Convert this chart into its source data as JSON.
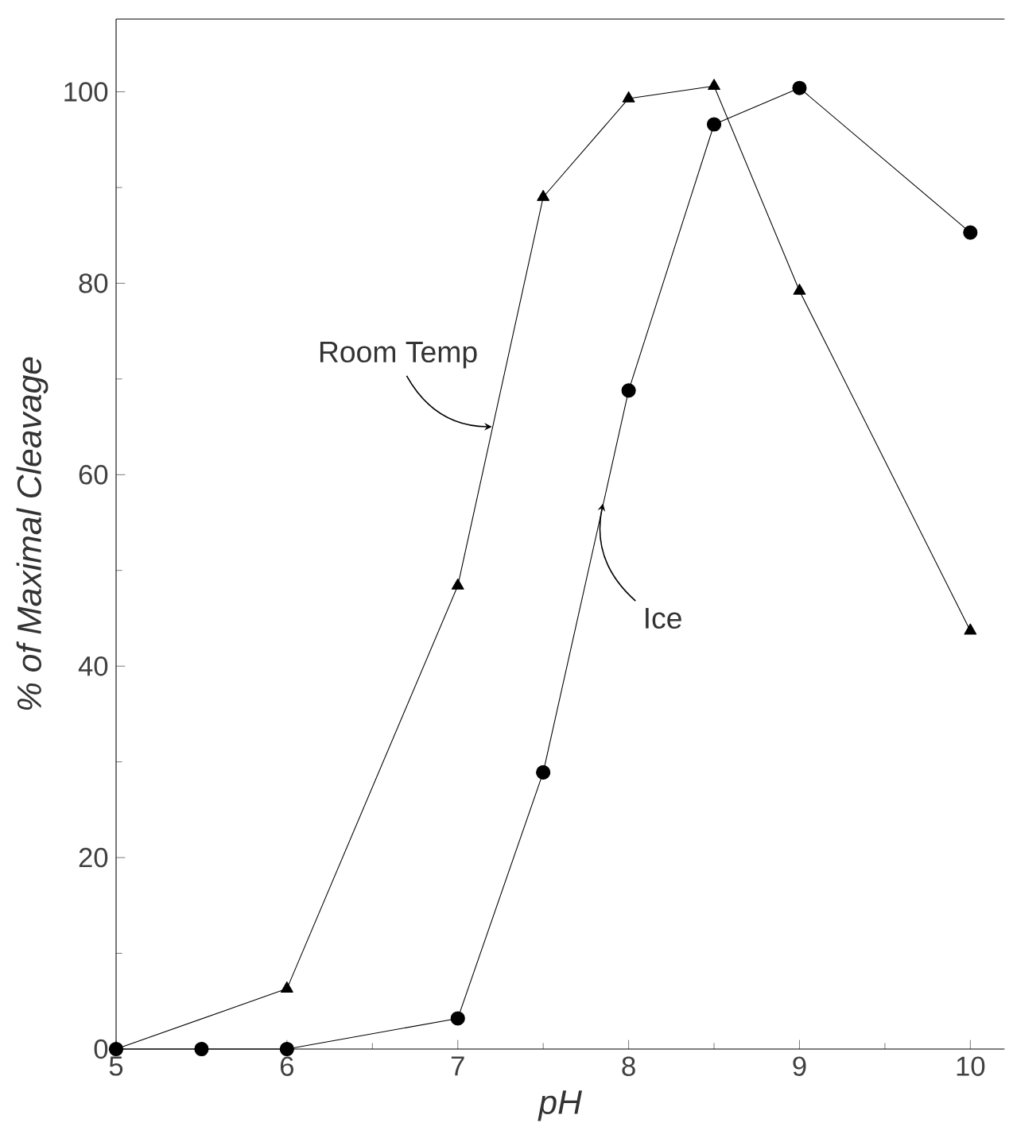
{
  "chart_data": {
    "type": "line",
    "xlabel": "pH",
    "ylabel": "% of Maximal Cleavage",
    "xlim": [
      5,
      10.2
    ],
    "ylim": [
      0,
      107.6
    ],
    "xticks": [
      5,
      6,
      7,
      8,
      9,
      10
    ],
    "yticks": [
      0,
      20,
      40,
      60,
      80,
      100
    ],
    "line_style": "solid",
    "series": [
      {
        "color": "#000000",
        "marker": "triangle",
        "x": [
          5,
          6,
          7,
          7.5,
          8,
          8.5,
          9,
          10
        ],
        "values": [
          0,
          6.3,
          48.4,
          89,
          99.3,
          100.6,
          79.2,
          43.7
        ]
      },
      {
        "color": "#000000",
        "marker": "circle",
        "x": [
          5,
          5.5,
          6,
          7,
          7.5,
          8,
          8.5,
          9,
          10
        ],
        "values": [
          0,
          0,
          0,
          3.2,
          28.9,
          68.8,
          96.6,
          100.4,
          85.3
        ]
      }
    ],
    "annotations": [
      {
        "text": "Room Temp",
        "x": 7.2,
        "y": 65
      },
      {
        "text": "Ice",
        "x": 7.85,
        "y": 57
      }
    ]
  }
}
